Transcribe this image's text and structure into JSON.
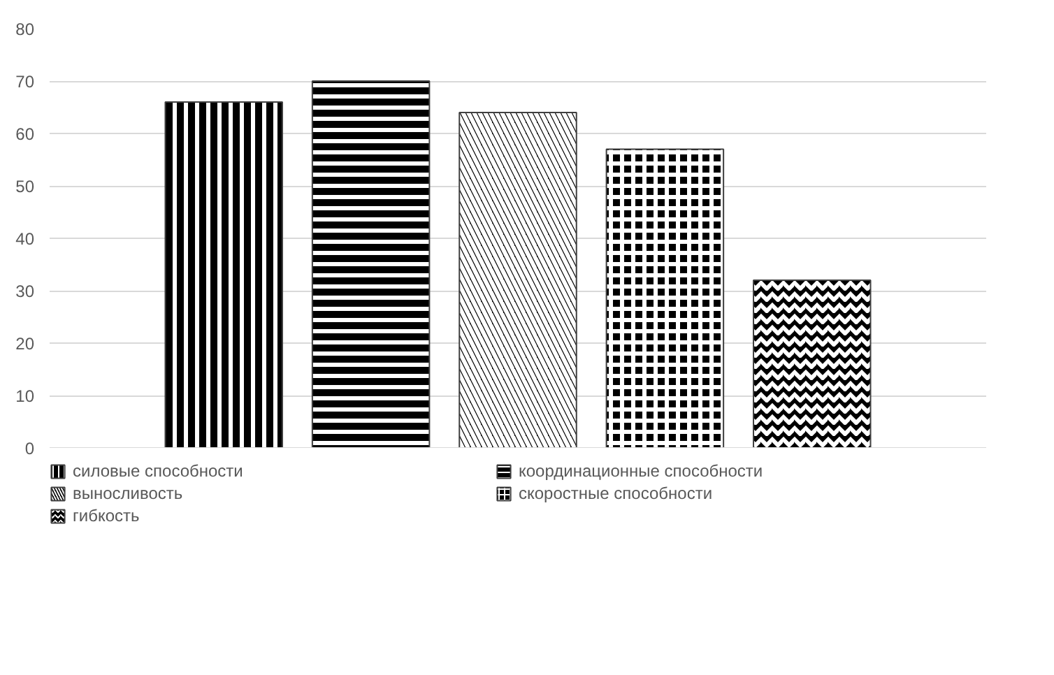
{
  "chart_data": {
    "type": "bar",
    "categories": [
      null
    ],
    "series": [
      {
        "name": "силовые способности",
        "color": "#000000",
        "values": [
          66
        ]
      },
      {
        "name": "координационные способности",
        "color": "#000000",
        "values": [
          70
        ]
      },
      {
        "name": "выносливость",
        "color": "#000000",
        "values": [
          64
        ]
      },
      {
        "name": "скоростные способности",
        "color": "#000000",
        "values": [
          57
        ]
      },
      {
        "name": "гибкость",
        "color": "#000000",
        "values": [
          32
        ]
      }
    ],
    "ylim": [
      0,
      80
    ],
    "yticks": [
      0,
      10,
      20,
      30,
      40,
      50,
      60,
      70,
      80
    ],
    "grid": "y",
    "legend": "bottom"
  }
}
